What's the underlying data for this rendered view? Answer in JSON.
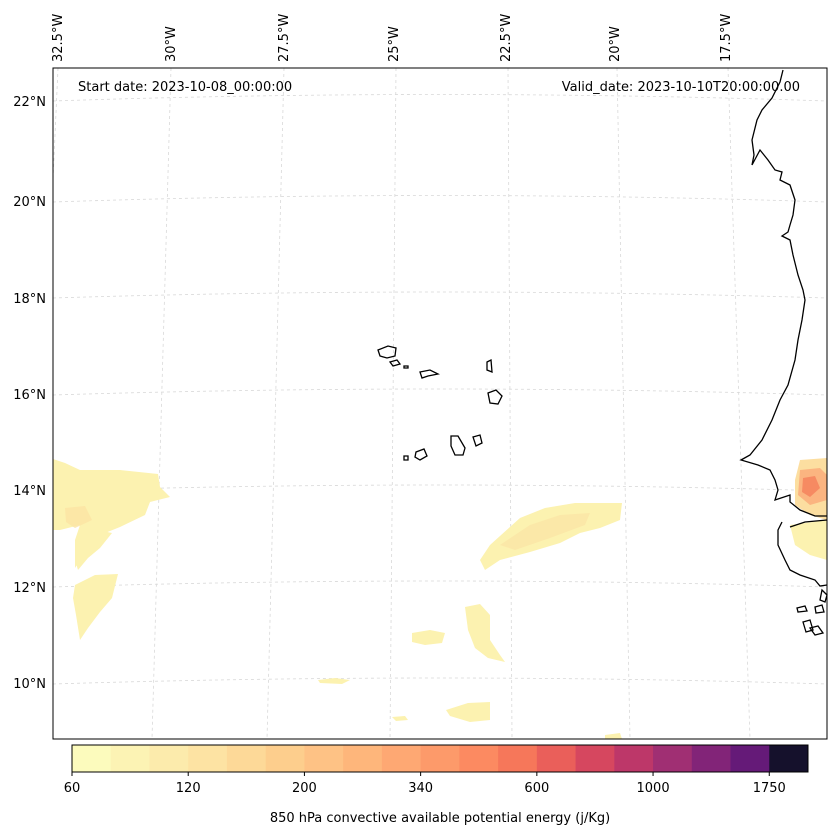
{
  "map": {
    "start_date": "Start date: 2023-10-08_00:00:00",
    "valid_date": "Valid_date: 2023-10-10T20:00:00.00",
    "lon_labels": [
      "32.5°W",
      "30°W",
      "27.5°W",
      "25°W",
      "22.5°W",
      "20°W",
      "17.5°W"
    ],
    "lat_labels": [
      "22°N",
      "20°N",
      "18°N",
      "16°N",
      "14°N",
      "12°N",
      "10°N"
    ],
    "coastline_color": "#000000",
    "gridline_color": "#cccccc",
    "variable": "850 hPa convective available potential energy (j/Kg)"
  },
  "colorbar": {
    "label": "850 hPa convective available potential energy (j/Kg)",
    "tick_labels": [
      "60",
      "120",
      "200",
      "340",
      "600",
      "1000",
      "1750"
    ],
    "colors": [
      "#fcfbbd",
      "#fcf3b4",
      "#fcebac",
      "#fde3a3",
      "#fdd998",
      "#fdce8d",
      "#fec285",
      "#feb67b",
      "#fea873",
      "#fd9a6a",
      "#fc8a61",
      "#f6775a",
      "#ea5f5a",
      "#d6475f",
      "#bd3769",
      "#a02f73",
      "#822478",
      "#651a78",
      "#15112c"
    ]
  }
}
